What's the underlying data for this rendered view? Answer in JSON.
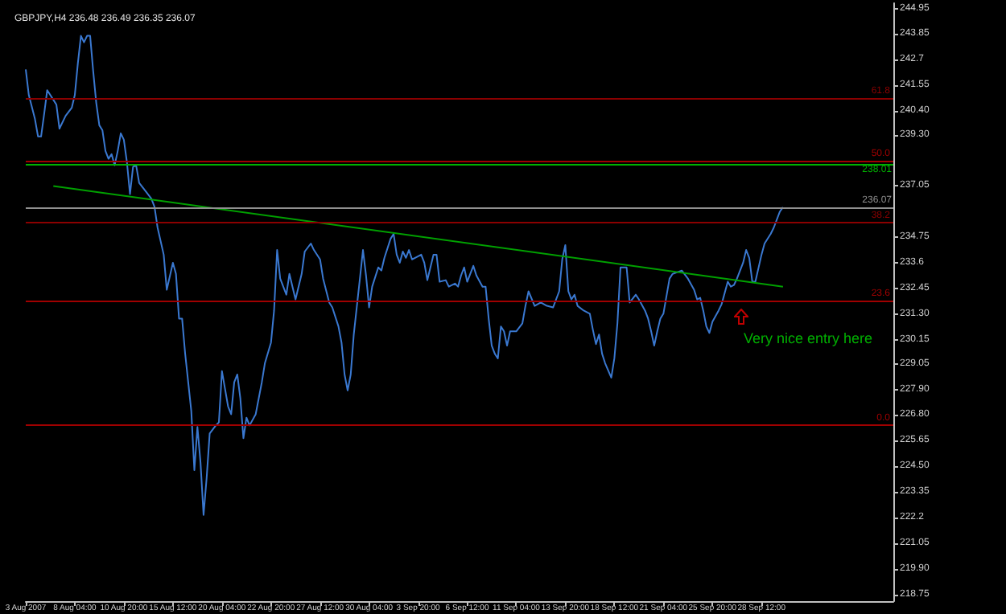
{
  "chart_data": {
    "type": "line",
    "title": "GBPJPY,H4 236.48 236.49 236.35 236.07",
    "marker": "none",
    "categories": [
      "3 Aug 2007",
      null,
      null,
      null,
      null,
      null,
      null,
      null,
      null,
      null,
      null,
      null,
      null,
      null,
      null,
      null,
      "8 Aug 04:00",
      null,
      null,
      null,
      null,
      null,
      null,
      null,
      null,
      null,
      null,
      null,
      null,
      null,
      null,
      null,
      "10 Aug 20:00",
      null,
      null,
      null,
      null,
      null,
      null,
      null,
      null,
      null,
      null,
      null,
      null,
      null,
      null,
      null,
      "15 Aug 12:00",
      null,
      null,
      null,
      null,
      null,
      null,
      null,
      null,
      null,
      null,
      null,
      null,
      null,
      null,
      null,
      "20 Aug 04:00",
      null,
      null,
      null,
      null,
      null,
      null,
      null,
      null,
      null,
      null,
      null,
      null,
      null,
      null,
      null,
      "22 Aug 20:00",
      null,
      null,
      null,
      null,
      null,
      null,
      null,
      null,
      null,
      null,
      null,
      null,
      null,
      null,
      null,
      "27 Aug 12:00",
      null,
      null,
      null,
      null,
      null,
      null,
      null,
      null,
      null,
      null,
      null,
      null,
      null,
      null,
      null,
      "30 Aug 04:00",
      null,
      null,
      null,
      null,
      null,
      null,
      null,
      null,
      null,
      null,
      null,
      null,
      null,
      null,
      null,
      "3 Sep 20:00",
      null,
      null,
      null,
      null,
      null,
      null,
      null,
      null,
      null,
      null,
      null,
      null,
      null,
      null,
      null,
      "6 Sep 12:00",
      null,
      null,
      null,
      null,
      null,
      null,
      null,
      null,
      null,
      null,
      null,
      null,
      null,
      null,
      null,
      "11 Sep 04:00",
      null,
      null,
      null,
      null,
      null,
      null,
      null,
      null,
      null,
      null,
      null,
      null,
      null,
      null,
      null,
      "13 Sep 20:00",
      null,
      null,
      null,
      null,
      null,
      null,
      null,
      null,
      null,
      null,
      null,
      null,
      null,
      null,
      null,
      "18 Sep 12:00",
      null,
      null,
      null,
      null,
      null,
      null,
      null,
      null,
      null,
      null,
      null,
      null,
      null,
      null,
      null,
      "21 Sep 04:00",
      null,
      null,
      null,
      null,
      null,
      null,
      null,
      null,
      null,
      null,
      null,
      null,
      null,
      null,
      null,
      "25 Sep 20:00",
      null,
      null,
      null,
      null,
      null,
      null,
      null,
      null,
      null,
      null,
      null,
      null,
      null,
      null,
      null,
      "28 Sep 12:00",
      null,
      null,
      null,
      null,
      null,
      null,
      null,
      null,
      null,
      null,
      null,
      null,
      null,
      null,
      null,
      null,
      null,
      null,
      null,
      null,
      null,
      null,
      null,
      null,
      null,
      null,
      null,
      null,
      null,
      null,
      null,
      null,
      null,
      null,
      null,
      null,
      null,
      null,
      null,
      null,
      null,
      null,
      null
    ],
    "ylim": [
      218.45,
      245.2
    ],
    "yticks": [
      244.95,
      243.85,
      242.7,
      241.55,
      {
        "value": 240.4,
        "label": "240.40"
      },
      {
        "value": 239.3,
        "label": "239.30"
      },
      237.05,
      234.75,
      233.6,
      232.45,
      {
        "value": 231.3,
        "label": "231.30"
      },
      230.15,
      229.05,
      {
        "value": 227.9,
        "label": "227.90"
      },
      {
        "value": 226.8,
        "label": "226.80"
      },
      225.65,
      {
        "value": 224.5,
        "label": "224.50"
      },
      223.35,
      222.2,
      221.05,
      {
        "value": 219.9,
        "label": "219.90"
      },
      218.75
    ],
    "series": [
      {
        "color": "#3a78d0",
        "values": [
          242.24,
          241.09,
          null,
          240.02,
          239.24,
          239.24,
          240.24,
          241.31,
          null,
          240.88,
          240.66,
          239.59,
          null,
          240.16,
          null,
          240.52,
          241.09,
          242.52,
          243.74,
          243.45,
          243.74,
          243.74,
          242.16,
          240.74,
          239.74,
          239.52,
          238.59,
          238.24,
          238.45,
          237.95,
          238.59,
          239.38,
          239.09,
          238.09,
          236.66,
          237.88,
          237.95,
          237.16,
          null,
          236.81,
          null,
          236.45,
          236.09,
          235.16,
          null,
          233.95,
          232.38,
          null,
          233.59,
          233.09,
          231.09,
          231.09,
          229.52,
          null,
          226.95,
          224.31,
          226.24,
          224.66,
          222.31,
          223.95,
          225.95,
          null,
          226.31,
          226.45,
          228.74,
          null,
          227.16,
          226.81,
          228.24,
          228.59,
          227.52,
          225.74,
          226.66,
          226.31,
          null,
          226.81,
          null,
          228.24,
          229.09,
          null,
          230.02,
          231.45,
          234.16,
          232.88,
          null,
          232.16,
          233.09,
          232.52,
          231.95,
          null,
          233.09,
          234.09,
          null,
          234.45,
          234.16,
          null,
          233.74,
          232.88,
          null,
          231.81,
          231.59,
          null,
          230.74,
          230.02,
          228.59,
          227.88,
          228.59,
          230.38,
          null,
          232.88,
          234.16,
          233.02,
          231.59,
          232.52,
          null,
          233.38,
          233.24,
          233.81,
          null,
          234.66,
          234.88,
          233.95,
          233.59,
          234.09,
          233.81,
          234.16,
          233.74,
          233.81,
          null,
          233.95,
          233.59,
          232.81,
          null,
          233.95,
          233.95,
          232.74,
          null,
          232.81,
          232.52,
          null,
          232.66,
          232.52,
          233.02,
          233.38,
          232.74,
          null,
          233.45,
          233.02,
          null,
          232.52,
          232.52,
          231.09,
          229.88,
          229.52,
          229.31,
          230.74,
          230.52,
          229.88,
          230.52,
          null,
          230.52,
          null,
          230.88,
          231.66,
          232.31,
          null,
          231.66,
          null,
          231.81,
          null,
          231.66,
          null,
          231.59,
          null,
          232.31,
          233.74,
          234.38,
          232.31,
          231.95,
          232.16,
          231.66,
          null,
          231.45,
          null,
          231.31,
          230.59,
          229.95,
          230.38,
          229.52,
          229.09,
          null,
          228.45,
          229.31,
          230.88,
          233.38,
          null,
          233.38,
          231.81,
          null,
          232.16,
          231.95,
          null,
          231.45,
          231.09,
          230.52,
          229.88,
          230.52,
          231.09,
          231.31,
          null,
          232.88,
          233.09,
          null,
          null,
          233.24,
          null,
          232.88,
          null,
          232.38,
          231.95,
          232.02,
          231.45,
          230.74,
          230.45,
          230.95,
          null,
          231.45,
          231.74,
          null,
          232.74,
          232.52,
          232.59,
          232.88,
          null,
          233.59,
          234.16,
          233.81,
          232.74,
          232.74,
          null,
          233.95,
          234.45,
          null,
          234.88,
          235.16,
          null,
          235.88,
          236.07,
          null,
          null,
          null,
          null,
          null,
          null,
          null,
          null,
          null,
          null,
          null,
          null,
          null,
          null,
          null,
          null,
          null,
          null,
          null,
          null,
          null,
          null,
          null,
          null,
          null,
          null,
          null,
          null,
          null,
          null,
          null,
          null,
          null,
          null,
          null,
          null
        ]
      },
      {
        "type": "line",
        "color": "#00a000",
        "values": [
          null,
          null,
          null,
          null,
          null,
          null,
          null,
          null,
          null,
          237.02,
          null,
          null,
          null,
          null,
          null,
          null,
          null,
          null,
          null,
          null,
          null,
          null,
          null,
          null,
          null,
          null,
          null,
          null,
          null,
          null,
          null,
          null,
          null,
          null,
          null,
          null,
          null,
          null,
          null,
          null,
          null,
          null,
          null,
          null,
          null,
          null,
          null,
          null,
          null,
          null,
          null,
          null,
          null,
          null,
          null,
          null,
          null,
          null,
          null,
          null,
          null,
          null,
          null,
          null,
          null,
          null,
          null,
          null,
          null,
          null,
          null,
          null,
          null,
          null,
          null,
          null,
          null,
          null,
          null,
          null,
          null,
          null,
          null,
          null,
          null,
          null,
          null,
          null,
          null,
          null,
          null,
          null,
          null,
          null,
          null,
          null,
          null,
          null,
          null,
          null,
          null,
          null,
          null,
          null,
          null,
          null,
          null,
          null,
          null,
          null,
          null,
          null,
          null,
          null,
          null,
          null,
          null,
          null,
          null,
          null,
          null,
          null,
          null,
          null,
          null,
          null,
          null,
          null,
          null,
          null,
          null,
          null,
          null,
          null,
          null,
          null,
          null,
          null,
          null,
          null,
          null,
          null,
          null,
          null,
          null,
          null,
          null,
          null,
          null,
          null,
          null,
          null,
          null,
          null,
          null,
          null,
          null,
          null,
          null,
          null,
          null,
          null,
          null,
          null,
          null,
          null,
          null,
          null,
          null,
          null,
          null,
          null,
          null,
          null,
          null,
          null,
          null,
          null,
          null,
          null,
          null,
          null,
          null,
          null,
          null,
          null,
          null,
          null,
          null,
          null,
          null,
          null,
          null,
          null,
          null,
          null,
          null,
          null,
          null,
          null,
          null,
          null,
          null,
          null,
          null,
          null,
          null,
          null,
          null,
          null,
          null,
          null,
          null,
          null,
          null,
          null,
          null,
          null,
          null,
          null,
          null,
          null,
          null,
          null,
          null,
          null,
          null,
          null,
          null,
          null,
          null,
          null,
          null,
          null,
          null,
          null,
          null,
          null,
          null,
          null,
          null,
          null,
          null,
          null,
          null,
          null,
          null,
          232.52,
          null,
          null,
          null,
          null,
          null,
          null,
          null,
          null,
          null,
          null,
          null,
          null,
          null,
          null,
          null,
          null,
          null,
          null,
          null,
          null,
          null,
          null,
          null,
          null,
          null,
          null,
          null,
          null,
          null,
          null,
          null,
          null,
          null,
          null,
          null,
          null
        ]
      }
    ],
    "ref_lines": [
      {
        "axis": "y",
        "value": 240.95,
        "color": "#8b0000"
      },
      {
        "axis": "y",
        "value": 238.17,
        "color": "#a00000"
      },
      {
        "axis": "y",
        "value": 238.01,
        "label": "238.01",
        "color": "#00b000"
      },
      {
        "axis": "y",
        "value": 236.07,
        "label": "236.07",
        "color": "#909090"
      },
      {
        "axis": "y",
        "value": 235.38,
        "color": "#8b0000"
      },
      {
        "axis": "y",
        "value": 231.88,
        "color": "#a00000"
      },
      {
        "axis": "y",
        "value": 226.31,
        "color": "#a00000"
      }
    ],
    "annotations": [
      "Very nice entry here",
      {
        "text": "61.8",
        "y": 240.95
      },
      {
        "text": "50.0",
        "y": 238.17
      },
      {
        "text": "38.2",
        "y": 235.38
      },
      {
        "text": "23.6",
        "y": 231.88
      },
      {
        "text": "0.0",
        "y": 226.31
      }
    ]
  }
}
